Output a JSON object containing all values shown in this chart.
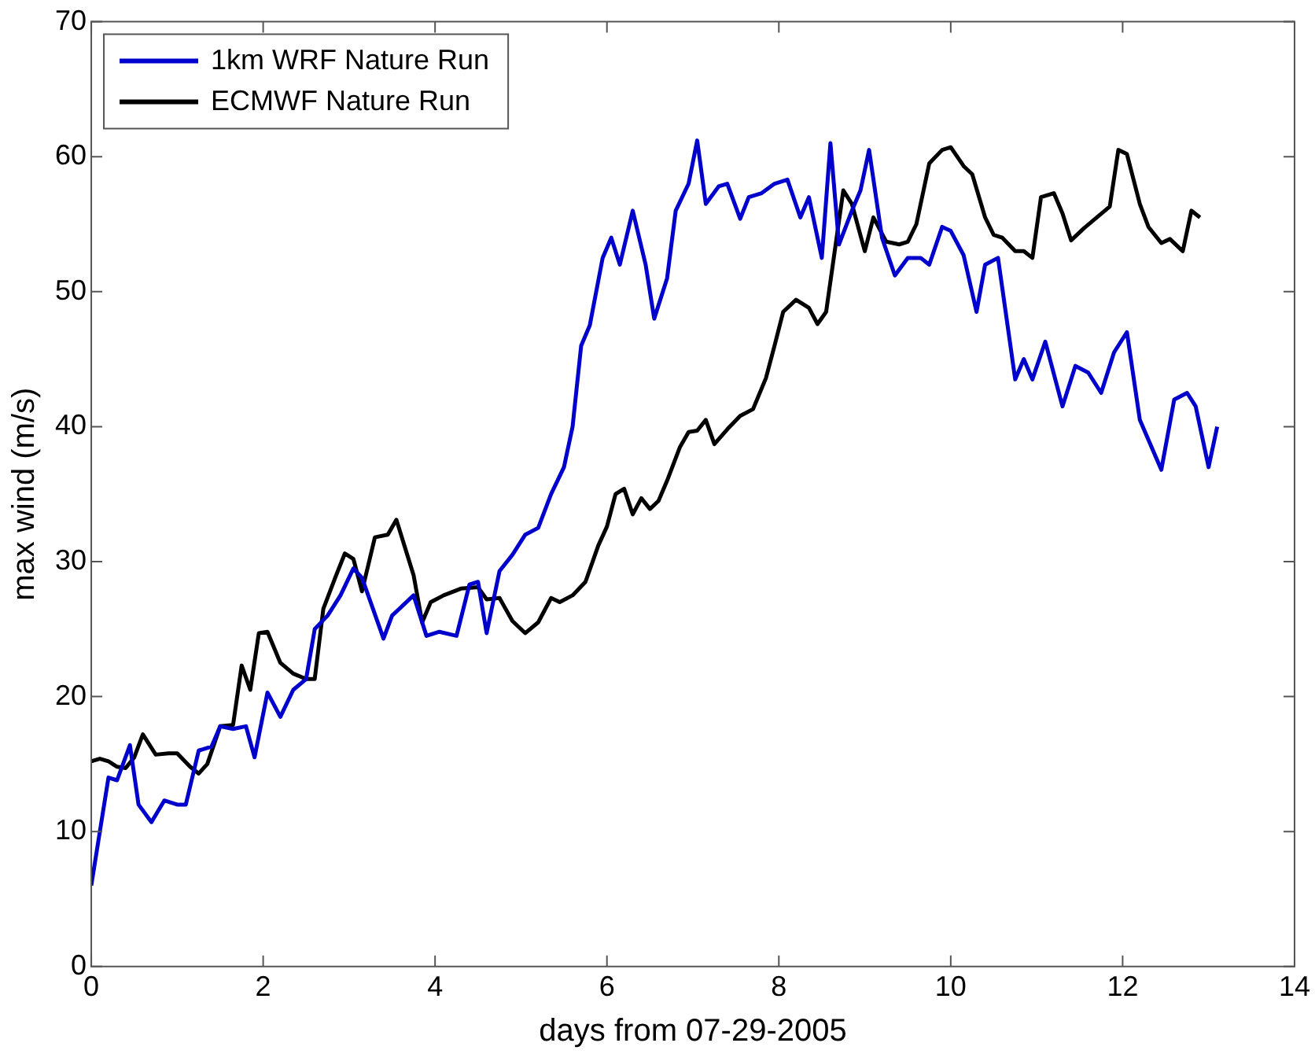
{
  "chart_data": {
    "type": "line",
    "xlabel": "days from 07-29-2005",
    "ylabel": "max wind (m/s)",
    "xlim": [
      0,
      14
    ],
    "xticks": [
      0,
      2,
      4,
      6,
      8,
      10,
      12,
      14
    ],
    "ylim": [
      0,
      70
    ],
    "yticks": [
      0,
      10,
      20,
      30,
      40,
      50,
      60,
      70
    ],
    "grid": false,
    "legend": "top left",
    "marker": "none",
    "line_style": "solid",
    "series": [
      {
        "name": "1km WRF Nature Run",
        "color": "#0000cc",
        "x": [
          0,
          0.1,
          0.2,
          0.3,
          0.45,
          0.55,
          0.7,
          0.85,
          1.0,
          1.1,
          1.25,
          1.4,
          1.5,
          1.65,
          1.8,
          1.9,
          2.05,
          2.2,
          2.35,
          2.5,
          2.6,
          2.75,
          2.9,
          3.05,
          3.15,
          3.4,
          3.5,
          3.75,
          3.9,
          4.05,
          4.25,
          4.4,
          4.5,
          4.6,
          4.75,
          4.9,
          5.05,
          5.2,
          5.35,
          5.5,
          5.6,
          5.7,
          5.8,
          5.95,
          6.05,
          6.15,
          6.3,
          6.45,
          6.55,
          6.7,
          6.8,
          6.95,
          7.05,
          7.15,
          7.3,
          7.4,
          7.55,
          7.65,
          7.8,
          7.95,
          8.1,
          8.25,
          8.35,
          8.5,
          8.6,
          8.7,
          8.85,
          8.95,
          9.05,
          9.2,
          9.35,
          9.5,
          9.65,
          9.75,
          9.9,
          10.0,
          10.15,
          10.3,
          10.4,
          10.55,
          10.75,
          10.85,
          10.95,
          11.1,
          11.3,
          11.45,
          11.6,
          11.75,
          11.9,
          12.05,
          12.2,
          12.45,
          12.6,
          12.75,
          12.85,
          13.0,
          13.1
        ],
        "values": [
          6,
          10,
          14,
          13.8,
          16.4,
          12,
          10.7,
          12.3,
          12,
          12,
          16,
          16.3,
          17.8,
          17.6,
          17.8,
          15.5,
          20.3,
          18.5,
          20.5,
          21.3,
          25,
          26,
          27.5,
          29.5,
          28.8,
          24.3,
          26,
          27.5,
          24.5,
          24.8,
          24.5,
          28.3,
          28.5,
          24.7,
          29.3,
          30.5,
          32,
          32.5,
          35,
          37,
          40,
          46,
          47.5,
          52.5,
          54,
          52,
          56,
          52,
          48,
          51,
          56,
          58,
          61.2,
          56.5,
          57.8,
          58,
          55.4,
          57,
          57.3,
          58,
          58.3,
          55.5,
          57,
          52.5,
          61,
          53.5,
          56,
          57.5,
          60.5,
          54,
          51.2,
          52.5,
          52.5,
          52,
          54.8,
          54.5,
          52.7,
          48.5,
          52,
          52.5,
          43.5,
          45,
          43.5,
          46.3,
          41.5,
          44.5,
          44,
          42.5,
          45.5,
          47,
          40.5,
          36.8,
          42,
          42.5,
          41.5,
          37,
          40
        ]
      },
      {
        "name": "ECMWF Nature Run",
        "color": "#000000",
        "x": [
          0,
          0.1,
          0.2,
          0.3,
          0.4,
          0.5,
          0.6,
          0.75,
          0.9,
          1.0,
          1.15,
          1.25,
          1.35,
          1.5,
          1.65,
          1.75,
          1.85,
          1.95,
          2.05,
          2.2,
          2.35,
          2.5,
          2.6,
          2.7,
          2.85,
          2.95,
          3.05,
          3.15,
          3.3,
          3.45,
          3.55,
          3.75,
          3.85,
          3.95,
          4.1,
          4.3,
          4.5,
          4.6,
          4.75,
          4.9,
          5.05,
          5.2,
          5.35,
          5.45,
          5.6,
          5.75,
          5.9,
          6.0,
          6.1,
          6.2,
          6.3,
          6.4,
          6.5,
          6.6,
          6.7,
          6.85,
          6.95,
          7.05,
          7.15,
          7.25,
          7.4,
          7.55,
          7.7,
          7.85,
          7.95,
          8.05,
          8.2,
          8.35,
          8.45,
          8.55,
          8.65,
          8.75,
          8.85,
          9.0,
          9.1,
          9.25,
          9.4,
          9.5,
          9.6,
          9.75,
          9.9,
          10.0,
          10.15,
          10.25,
          10.4,
          10.5,
          10.6,
          10.75,
          10.85,
          10.95,
          11.05,
          11.2,
          11.3,
          11.4,
          11.55,
          11.7,
          11.85,
          11.95,
          12.05,
          12.2,
          12.3,
          12.45,
          12.55,
          12.7,
          12.8,
          12.9
        ],
        "values": [
          15.2,
          15.4,
          15.2,
          14.8,
          14.7,
          15.5,
          17.2,
          15.7,
          15.8,
          15.8,
          14.8,
          14.3,
          15,
          17.8,
          17.9,
          22.3,
          20.5,
          24.7,
          24.8,
          22.5,
          21.7,
          21.3,
          21.3,
          26.5,
          29,
          30.6,
          30.2,
          27.8,
          31.8,
          32,
          33.1,
          29,
          25.5,
          27,
          27.5,
          28,
          28.1,
          27.2,
          27.3,
          25.6,
          24.7,
          25.5,
          27.3,
          27,
          27.5,
          28.5,
          31.2,
          32.6,
          35,
          35.4,
          33.5,
          34.7,
          33.9,
          34.5,
          36,
          38.5,
          39.6,
          39.7,
          40.5,
          38.7,
          39.8,
          40.8,
          41.3,
          43.6,
          46,
          48.5,
          49.4,
          48.8,
          47.6,
          48.5,
          53,
          57.5,
          56.5,
          53,
          55.5,
          53.7,
          53.5,
          53.7,
          55,
          59.5,
          60.5,
          60.7,
          59.3,
          58.7,
          55.5,
          54.2,
          54,
          53,
          53,
          52.5,
          57,
          57.3,
          55.8,
          53.8,
          54.7,
          55.5,
          56.3,
          60.5,
          60.2,
          56.5,
          54.8,
          53.6,
          53.9,
          53,
          56,
          55.5
        ]
      }
    ]
  }
}
